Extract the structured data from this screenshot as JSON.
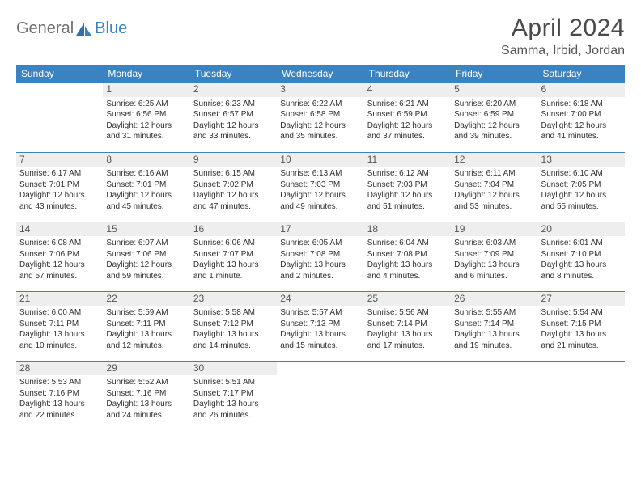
{
  "logo": {
    "text1": "General",
    "text2": "Blue"
  },
  "title": "April 2024",
  "location": "Samma, Irbid, Jordan",
  "header_bg": "#3b83c0",
  "header_fg": "#ffffff",
  "daynum_bg": "#eeeeee",
  "rule_color": "#3b83c0",
  "days_of_week": [
    "Sunday",
    "Monday",
    "Tuesday",
    "Wednesday",
    "Thursday",
    "Friday",
    "Saturday"
  ],
  "weeks": [
    [
      {
        "num": "",
        "sunrise": "",
        "sunset": "",
        "daylight": ""
      },
      {
        "num": "1",
        "sunrise": "Sunrise: 6:25 AM",
        "sunset": "Sunset: 6:56 PM",
        "daylight": "Daylight: 12 hours and 31 minutes."
      },
      {
        "num": "2",
        "sunrise": "Sunrise: 6:23 AM",
        "sunset": "Sunset: 6:57 PM",
        "daylight": "Daylight: 12 hours and 33 minutes."
      },
      {
        "num": "3",
        "sunrise": "Sunrise: 6:22 AM",
        "sunset": "Sunset: 6:58 PM",
        "daylight": "Daylight: 12 hours and 35 minutes."
      },
      {
        "num": "4",
        "sunrise": "Sunrise: 6:21 AM",
        "sunset": "Sunset: 6:59 PM",
        "daylight": "Daylight: 12 hours and 37 minutes."
      },
      {
        "num": "5",
        "sunrise": "Sunrise: 6:20 AM",
        "sunset": "Sunset: 6:59 PM",
        "daylight": "Daylight: 12 hours and 39 minutes."
      },
      {
        "num": "6",
        "sunrise": "Sunrise: 6:18 AM",
        "sunset": "Sunset: 7:00 PM",
        "daylight": "Daylight: 12 hours and 41 minutes."
      }
    ],
    [
      {
        "num": "7",
        "sunrise": "Sunrise: 6:17 AM",
        "sunset": "Sunset: 7:01 PM",
        "daylight": "Daylight: 12 hours and 43 minutes."
      },
      {
        "num": "8",
        "sunrise": "Sunrise: 6:16 AM",
        "sunset": "Sunset: 7:01 PM",
        "daylight": "Daylight: 12 hours and 45 minutes."
      },
      {
        "num": "9",
        "sunrise": "Sunrise: 6:15 AM",
        "sunset": "Sunset: 7:02 PM",
        "daylight": "Daylight: 12 hours and 47 minutes."
      },
      {
        "num": "10",
        "sunrise": "Sunrise: 6:13 AM",
        "sunset": "Sunset: 7:03 PM",
        "daylight": "Daylight: 12 hours and 49 minutes."
      },
      {
        "num": "11",
        "sunrise": "Sunrise: 6:12 AM",
        "sunset": "Sunset: 7:03 PM",
        "daylight": "Daylight: 12 hours and 51 minutes."
      },
      {
        "num": "12",
        "sunrise": "Sunrise: 6:11 AM",
        "sunset": "Sunset: 7:04 PM",
        "daylight": "Daylight: 12 hours and 53 minutes."
      },
      {
        "num": "13",
        "sunrise": "Sunrise: 6:10 AM",
        "sunset": "Sunset: 7:05 PM",
        "daylight": "Daylight: 12 hours and 55 minutes."
      }
    ],
    [
      {
        "num": "14",
        "sunrise": "Sunrise: 6:08 AM",
        "sunset": "Sunset: 7:06 PM",
        "daylight": "Daylight: 12 hours and 57 minutes."
      },
      {
        "num": "15",
        "sunrise": "Sunrise: 6:07 AM",
        "sunset": "Sunset: 7:06 PM",
        "daylight": "Daylight: 12 hours and 59 minutes."
      },
      {
        "num": "16",
        "sunrise": "Sunrise: 6:06 AM",
        "sunset": "Sunset: 7:07 PM",
        "daylight": "Daylight: 13 hours and 1 minute."
      },
      {
        "num": "17",
        "sunrise": "Sunrise: 6:05 AM",
        "sunset": "Sunset: 7:08 PM",
        "daylight": "Daylight: 13 hours and 2 minutes."
      },
      {
        "num": "18",
        "sunrise": "Sunrise: 6:04 AM",
        "sunset": "Sunset: 7:08 PM",
        "daylight": "Daylight: 13 hours and 4 minutes."
      },
      {
        "num": "19",
        "sunrise": "Sunrise: 6:03 AM",
        "sunset": "Sunset: 7:09 PM",
        "daylight": "Daylight: 13 hours and 6 minutes."
      },
      {
        "num": "20",
        "sunrise": "Sunrise: 6:01 AM",
        "sunset": "Sunset: 7:10 PM",
        "daylight": "Daylight: 13 hours and 8 minutes."
      }
    ],
    [
      {
        "num": "21",
        "sunrise": "Sunrise: 6:00 AM",
        "sunset": "Sunset: 7:11 PM",
        "daylight": "Daylight: 13 hours and 10 minutes."
      },
      {
        "num": "22",
        "sunrise": "Sunrise: 5:59 AM",
        "sunset": "Sunset: 7:11 PM",
        "daylight": "Daylight: 13 hours and 12 minutes."
      },
      {
        "num": "23",
        "sunrise": "Sunrise: 5:58 AM",
        "sunset": "Sunset: 7:12 PM",
        "daylight": "Daylight: 13 hours and 14 minutes."
      },
      {
        "num": "24",
        "sunrise": "Sunrise: 5:57 AM",
        "sunset": "Sunset: 7:13 PM",
        "daylight": "Daylight: 13 hours and 15 minutes."
      },
      {
        "num": "25",
        "sunrise": "Sunrise: 5:56 AM",
        "sunset": "Sunset: 7:14 PM",
        "daylight": "Daylight: 13 hours and 17 minutes."
      },
      {
        "num": "26",
        "sunrise": "Sunrise: 5:55 AM",
        "sunset": "Sunset: 7:14 PM",
        "daylight": "Daylight: 13 hours and 19 minutes."
      },
      {
        "num": "27",
        "sunrise": "Sunrise: 5:54 AM",
        "sunset": "Sunset: 7:15 PM",
        "daylight": "Daylight: 13 hours and 21 minutes."
      }
    ],
    [
      {
        "num": "28",
        "sunrise": "Sunrise: 5:53 AM",
        "sunset": "Sunset: 7:16 PM",
        "daylight": "Daylight: 13 hours and 22 minutes."
      },
      {
        "num": "29",
        "sunrise": "Sunrise: 5:52 AM",
        "sunset": "Sunset: 7:16 PM",
        "daylight": "Daylight: 13 hours and 24 minutes."
      },
      {
        "num": "30",
        "sunrise": "Sunrise: 5:51 AM",
        "sunset": "Sunset: 7:17 PM",
        "daylight": "Daylight: 13 hours and 26 minutes."
      },
      {
        "num": "",
        "sunrise": "",
        "sunset": "",
        "daylight": ""
      },
      {
        "num": "",
        "sunrise": "",
        "sunset": "",
        "daylight": ""
      },
      {
        "num": "",
        "sunrise": "",
        "sunset": "",
        "daylight": ""
      },
      {
        "num": "",
        "sunrise": "",
        "sunset": "",
        "daylight": ""
      }
    ]
  ]
}
